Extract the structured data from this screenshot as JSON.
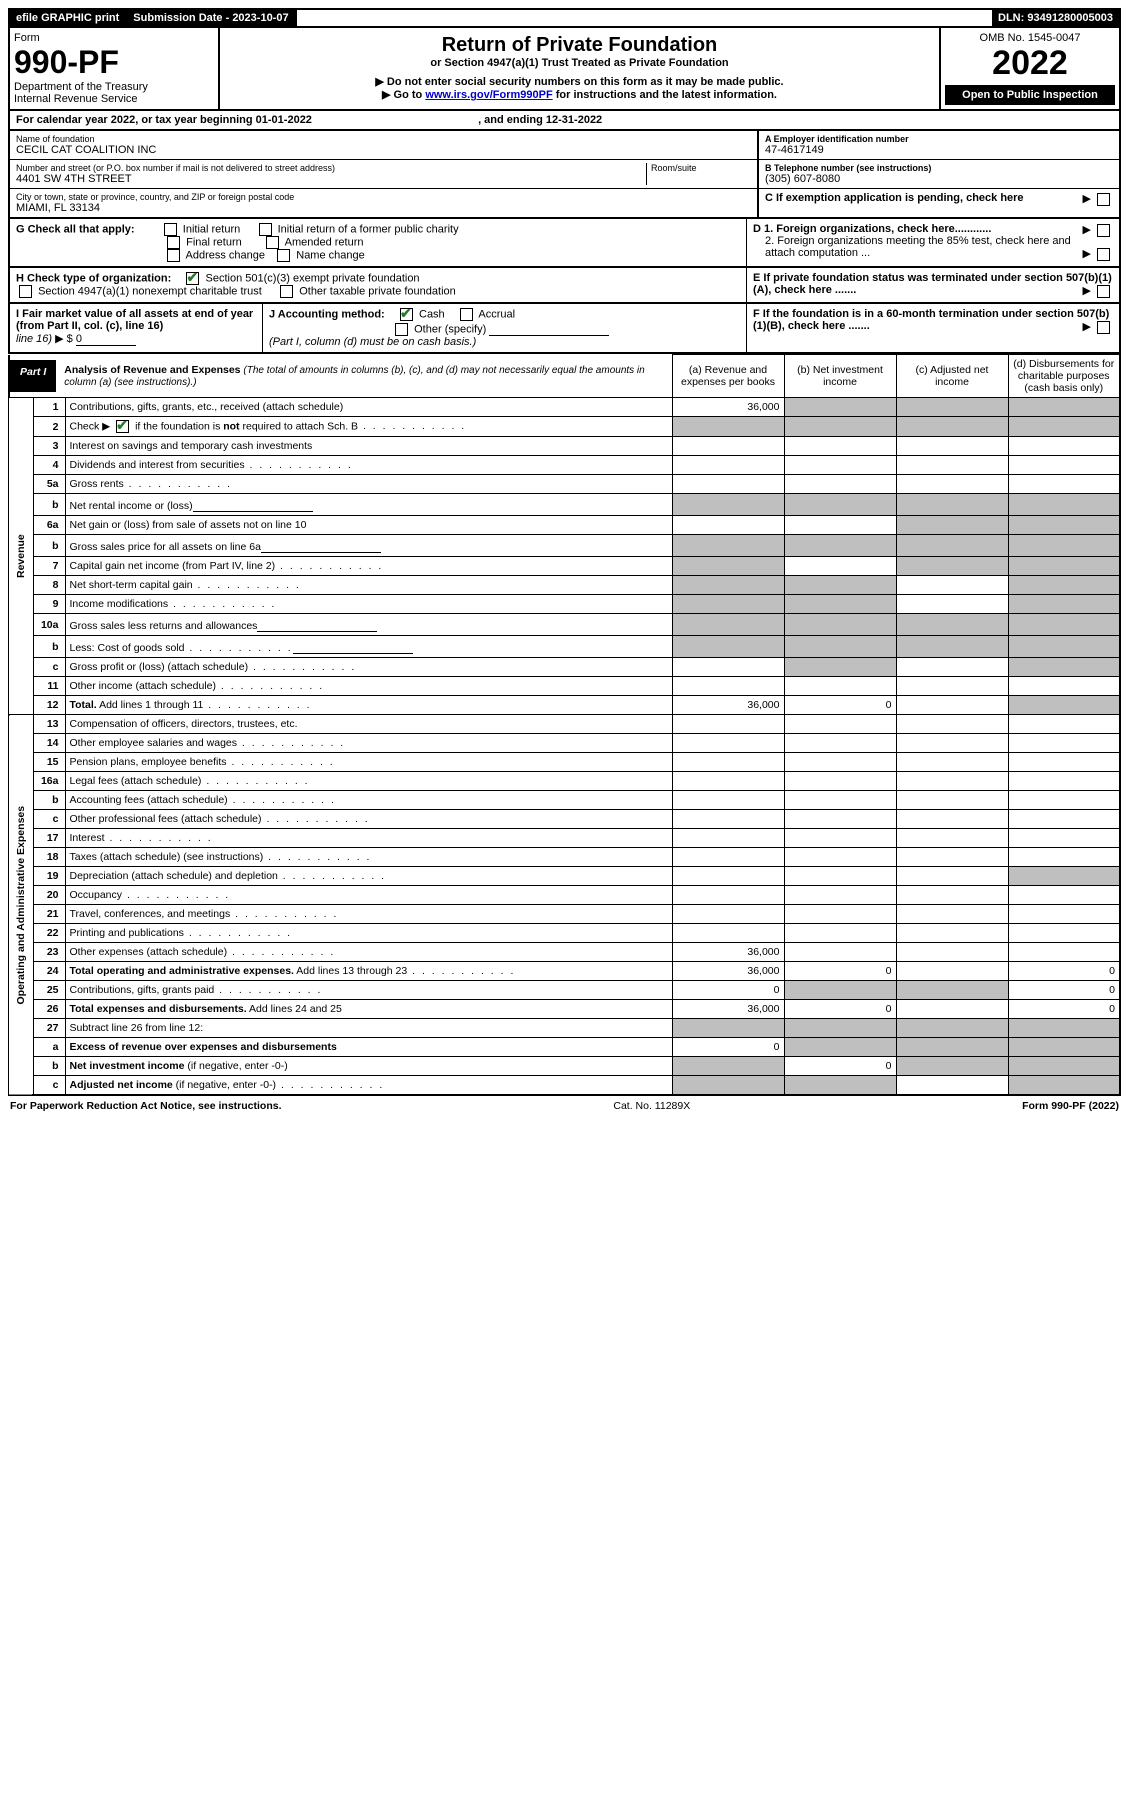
{
  "colors": {
    "black": "#000000",
    "white": "#ffffff",
    "shade": "#bfbfbf",
    "link": "#0000cc",
    "check": "#2a7a2a"
  },
  "topbar": {
    "efile": "efile GRAPHIC print",
    "submission_label": "Submission Date - 2023-10-07",
    "dln": "DLN: 93491280005003"
  },
  "header": {
    "form_label": "Form",
    "form_number": "990-PF",
    "dept1": "Department of the Treasury",
    "dept2": "Internal Revenue Service",
    "title": "Return of Private Foundation",
    "subtitle": "or Section 4947(a)(1) Trust Treated as Private Foundation",
    "note1": "▶ Do not enter social security numbers on this form as it may be made public.",
    "note2_pre": "▶ Go to ",
    "note2_link": "www.irs.gov/Form990PF",
    "note2_post": " for instructions and the latest information.",
    "omb": "OMB No. 1545-0047",
    "year": "2022",
    "open": "Open to Public Inspection"
  },
  "calyear": {
    "text_pre": "For calendar year 2022, or tax year beginning ",
    "begin": "01-01-2022",
    "text_mid": " , and ending ",
    "end": "12-31-2022"
  },
  "ident": {
    "name_label": "Name of foundation",
    "name": "CECIL CAT COALITION INC",
    "ein_label": "A Employer identification number",
    "ein": "47-4617149",
    "addr_label": "Number and street (or P.O. box number if mail is not delivered to street address)",
    "addr": "4401 SW 4TH STREET",
    "room_label": "Room/suite",
    "phone_label": "B Telephone number (see instructions)",
    "phone": "(305) 607-8080",
    "city_label": "City or town, state or province, country, and ZIP or foreign postal code",
    "city": "MIAMI, FL  33134",
    "c_label": "C If exemption application is pending, check here"
  },
  "g": {
    "label": "G Check all that apply:",
    "initial": "Initial return",
    "initial_former": "Initial return of a former public charity",
    "final": "Final return",
    "amended": "Amended return",
    "addr_change": "Address change",
    "name_change": "Name change"
  },
  "d": {
    "d1": "D 1. Foreign organizations, check here............",
    "d2": "2. Foreign organizations meeting the 85% test, check here and attach computation ..."
  },
  "h": {
    "label": "H Check type of organization:",
    "opt1": "Section 501(c)(3) exempt private foundation",
    "opt2": "Section 4947(a)(1) nonexempt charitable trust",
    "opt3": "Other taxable private foundation"
  },
  "e": {
    "text": "E If private foundation status was terminated under section 507(b)(1)(A), check here ......."
  },
  "i": {
    "label": "I Fair market value of all assets at end of year (from Part II, col. (c), line 16)",
    "prefix": "▶ $",
    "value": "0"
  },
  "j": {
    "label": "J Accounting method:",
    "cash": "Cash",
    "accrual": "Accrual",
    "other": "Other (specify)",
    "note": "(Part I, column (d) must be on cash basis.)"
  },
  "f": {
    "text": "F  If the foundation is in a 60-month termination under section 507(b)(1)(B), check here ......."
  },
  "part1": {
    "label": "Part I",
    "title": "Analysis of Revenue and Expenses",
    "title_note": " (The total of amounts in columns (b), (c), and (d) may not necessarily equal the amounts in column (a) (see instructions).)",
    "col_a": "(a)  Revenue and expenses per books",
    "col_b": "(b)  Net investment income",
    "col_c": "(c)  Adjusted net income",
    "col_d": "(d)  Disbursements for charitable purposes (cash basis only)"
  },
  "side": {
    "revenue": "Revenue",
    "expenses": "Operating and Administrative Expenses"
  },
  "rows": [
    {
      "n": "1",
      "desc": "Contributions, gifts, grants, etc., received (attach schedule)",
      "a": "36,000",
      "shade_bcd": false,
      "shade_b": true,
      "shade_c": true,
      "shade_d": true
    },
    {
      "n": "2",
      "desc_html": "Check ▶ ☑ if the foundation is <b>not</b> required to attach Sch. B",
      "dots": true,
      "shade_all": true
    },
    {
      "n": "3",
      "desc": "Interest on savings and temporary cash investments"
    },
    {
      "n": "4",
      "desc": "Dividends and interest from securities",
      "dots": true
    },
    {
      "n": "5a",
      "desc": "Gross rents",
      "dots": true
    },
    {
      "n": "b",
      "desc": "Net rental income or (loss)",
      "inline_input": true,
      "shade_all": true,
      "a_shade": false
    },
    {
      "n": "6a",
      "desc": "Net gain or (loss) from sale of assets not on line 10",
      "shade_b": false,
      "shade_c": true,
      "shade_d": true
    },
    {
      "n": "b",
      "desc": "Gross sales price for all assets on line 6a",
      "inline_input": true,
      "shade_all": true
    },
    {
      "n": "7",
      "desc": "Capital gain net income (from Part IV, line 2)",
      "dots": true,
      "shade_a": true,
      "shade_c": true,
      "shade_d": true
    },
    {
      "n": "8",
      "desc": "Net short-term capital gain",
      "dots": true,
      "shade_a": true,
      "shade_b": true,
      "shade_d": true
    },
    {
      "n": "9",
      "desc": "Income modifications",
      "dots": true,
      "shade_a": true,
      "shade_b": true,
      "shade_d": true
    },
    {
      "n": "10a",
      "desc": "Gross sales less returns and allowances",
      "inline_input": true,
      "shade_all": true
    },
    {
      "n": "b",
      "desc": "Less: Cost of goods sold",
      "dots": true,
      "inline_input": true,
      "shade_all": true
    },
    {
      "n": "c",
      "desc": "Gross profit or (loss) (attach schedule)",
      "dots": true,
      "shade_b": true,
      "shade_d": true
    },
    {
      "n": "11",
      "desc": "Other income (attach schedule)",
      "dots": true
    },
    {
      "n": "12",
      "desc": "<b>Total.</b> Add lines 1 through 11",
      "dots": true,
      "a": "36,000",
      "b": "0",
      "shade_d": true
    }
  ],
  "exp_rows": [
    {
      "n": "13",
      "desc": "Compensation of officers, directors, trustees, etc."
    },
    {
      "n": "14",
      "desc": "Other employee salaries and wages",
      "dots": true
    },
    {
      "n": "15",
      "desc": "Pension plans, employee benefits",
      "dots": true
    },
    {
      "n": "16a",
      "desc": "Legal fees (attach schedule)",
      "dots": true
    },
    {
      "n": "b",
      "desc": "Accounting fees (attach schedule)",
      "dots": true
    },
    {
      "n": "c",
      "desc": "Other professional fees (attach schedule)",
      "dots": true
    },
    {
      "n": "17",
      "desc": "Interest",
      "dots": true
    },
    {
      "n": "18",
      "desc": "Taxes (attach schedule) (see instructions)",
      "dots": true
    },
    {
      "n": "19",
      "desc": "Depreciation (attach schedule) and depletion",
      "dots": true,
      "shade_d": true
    },
    {
      "n": "20",
      "desc": "Occupancy",
      "dots": true
    },
    {
      "n": "21",
      "desc": "Travel, conferences, and meetings",
      "dots": true
    },
    {
      "n": "22",
      "desc": "Printing and publications",
      "dots": true
    },
    {
      "n": "23",
      "desc": "Other expenses (attach schedule)",
      "dots": true,
      "a": "36,000"
    },
    {
      "n": "24",
      "desc": "<b>Total operating and administrative expenses.</b> Add lines 13 through 23",
      "dots": true,
      "a": "36,000",
      "b": "0",
      "d": "0"
    },
    {
      "n": "25",
      "desc": "Contributions, gifts, grants paid",
      "dots": true,
      "a": "0",
      "shade_b": true,
      "shade_c": true,
      "d": "0"
    },
    {
      "n": "26",
      "desc": "<b>Total expenses and disbursements.</b> Add lines 24 and 25",
      "a": "36,000",
      "b": "0",
      "d": "0"
    },
    {
      "n": "27",
      "desc": "Subtract line 26 from line 12:",
      "shade_all_val": true
    },
    {
      "n": "a",
      "desc": "<b>Excess of revenue over expenses and disbursements</b>",
      "a": "0",
      "shade_b": true,
      "shade_c": true,
      "shade_d": true
    },
    {
      "n": "b",
      "desc": "<b>Net investment income</b> (if negative, enter -0-)",
      "shade_a": true,
      "b": "0",
      "shade_c": true,
      "shade_d": true
    },
    {
      "n": "c",
      "desc": "<b>Adjusted net income</b> (if negative, enter -0-)",
      "dots": true,
      "shade_a": true,
      "shade_b": true,
      "shade_d": true
    }
  ],
  "footer": {
    "left": "For Paperwork Reduction Act Notice, see instructions.",
    "mid": "Cat. No. 11289X",
    "right": "Form 990-PF (2022)"
  }
}
